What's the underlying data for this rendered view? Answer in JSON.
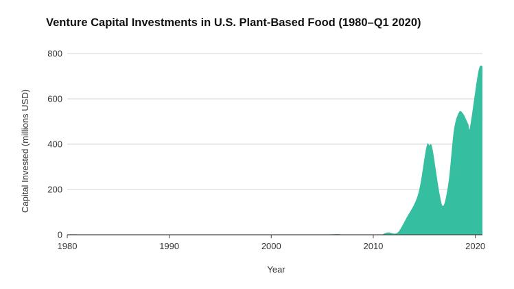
{
  "chart_data": {
    "type": "area",
    "title": "Venture Capital Investments in U.S. Plant-Based Food (1980–Q1 2020)",
    "xlabel": "Year",
    "ylabel": "Capital Invested (millions USD)",
    "xlim": [
      1980,
      2020.7
    ],
    "ylim": [
      0,
      800
    ],
    "x_ticks": [
      1980,
      1990,
      2000,
      2010,
      2020
    ],
    "y_ticks": [
      0,
      200,
      400,
      600,
      800
    ],
    "grid": "horizontal",
    "color": "#35bfa0",
    "x": [
      1980,
      1985,
      1990,
      1995,
      2000,
      2005,
      2006,
      2006.5,
      2007,
      2007.5,
      2010.5,
      2011.2,
      2011.6,
      2012.1,
      2012.5,
      2013.2,
      2014.4,
      2015.2,
      2015.5,
      2015.8,
      2016.5,
      2016.9,
      2017.4,
      2017.9,
      2018.4,
      2018.8,
      2019.3,
      2019.5,
      2020.3,
      2020.7
    ],
    "values": [
      2,
      1,
      1,
      1,
      1,
      0,
      2,
      3,
      1,
      0,
      0,
      8,
      10,
      5,
      15,
      70,
      180,
      385,
      395,
      380,
      180,
      130,
      240,
      460,
      540,
      535,
      490,
      480,
      720,
      745
    ]
  }
}
